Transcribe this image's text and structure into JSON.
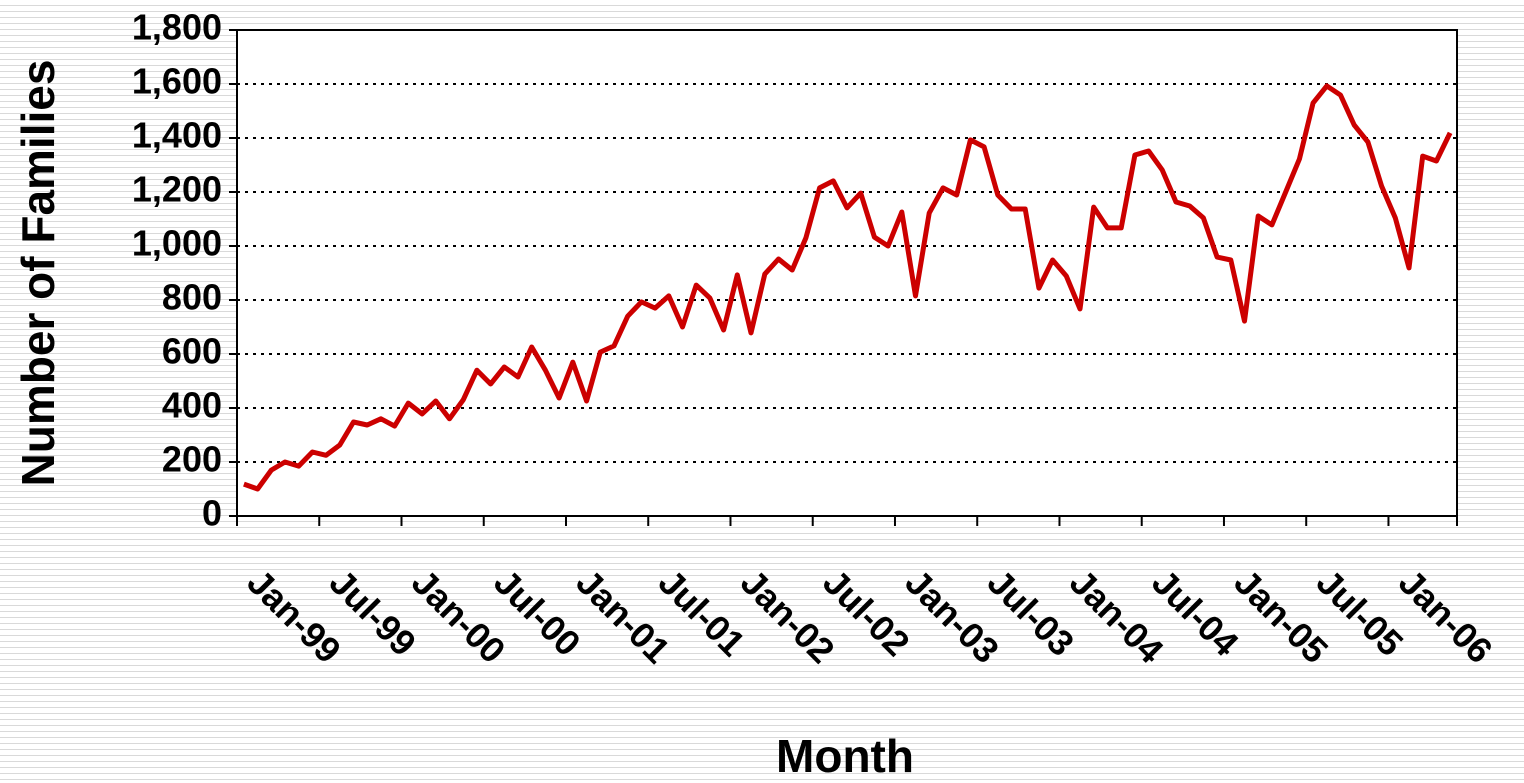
{
  "chart_data": {
    "type": "line",
    "x_label": "Month",
    "y_label": "Number of Families",
    "categories": [
      "Jan-99",
      null,
      null,
      null,
      null,
      null,
      "Jul-99",
      null,
      null,
      null,
      null,
      null,
      "Jan-00",
      null,
      null,
      null,
      null,
      null,
      "Jul-00",
      null,
      null,
      null,
      null,
      null,
      "Jan-01",
      null,
      null,
      null,
      null,
      null,
      "Jul-01",
      null,
      null,
      null,
      null,
      null,
      "Jan-02",
      null,
      null,
      null,
      null,
      null,
      "Jul-02",
      null,
      null,
      null,
      null,
      null,
      "Jan-03",
      null,
      null,
      null,
      null,
      null,
      "Jul-03",
      null,
      null,
      null,
      null,
      null,
      "Jan-04",
      null,
      null,
      null,
      null,
      null,
      "Jul-04",
      null,
      null,
      null,
      null,
      null,
      "Jan-05",
      null,
      null,
      null,
      null,
      null,
      "Jul-05",
      null,
      null,
      null,
      null,
      null,
      "Jan-06",
      null,
      null,
      null,
      null
    ],
    "series": [
      {
        "name": "Number of Families",
        "color": "#cc0000",
        "values": [
          118,
          100,
          170,
          200,
          185,
          237,
          225,
          263,
          348,
          337,
          360,
          333,
          418,
          378,
          426,
          360,
          430,
          540,
          489,
          552,
          515,
          626,
          540,
          437,
          570,
          426,
          607,
          630,
          740,
          793,
          770,
          815,
          700,
          855,
          807,
          689,
          893,
          678,
          896,
          952,
          911,
          1030,
          1215,
          1241,
          1141,
          1196,
          1033,
          1000,
          1126,
          815,
          1122,
          1215,
          1189,
          1393,
          1367,
          1189,
          1137,
          1137,
          844,
          948,
          889,
          767,
          1144,
          1067,
          1067,
          1337,
          1352,
          1281,
          1163,
          1148,
          1104,
          959,
          948,
          722,
          1111,
          1078,
          1200,
          1322,
          1530,
          1593,
          1559,
          1448,
          1385,
          1222,
          1104,
          919,
          1333,
          1315,
          1419
        ]
      }
    ],
    "ylim": [
      0,
      1800
    ],
    "yticks": [
      0,
      200,
      400,
      600,
      800,
      {
        "value": 1000,
        "label": "1,000"
      },
      {
        "value": 1200,
        "label": "1,200"
      },
      {
        "value": 1400,
        "label": "1,400"
      },
      {
        "value": 1600,
        "label": "1,600"
      },
      {
        "value": 1800,
        "label": "1,800"
      }
    ],
    "grid": true
  }
}
